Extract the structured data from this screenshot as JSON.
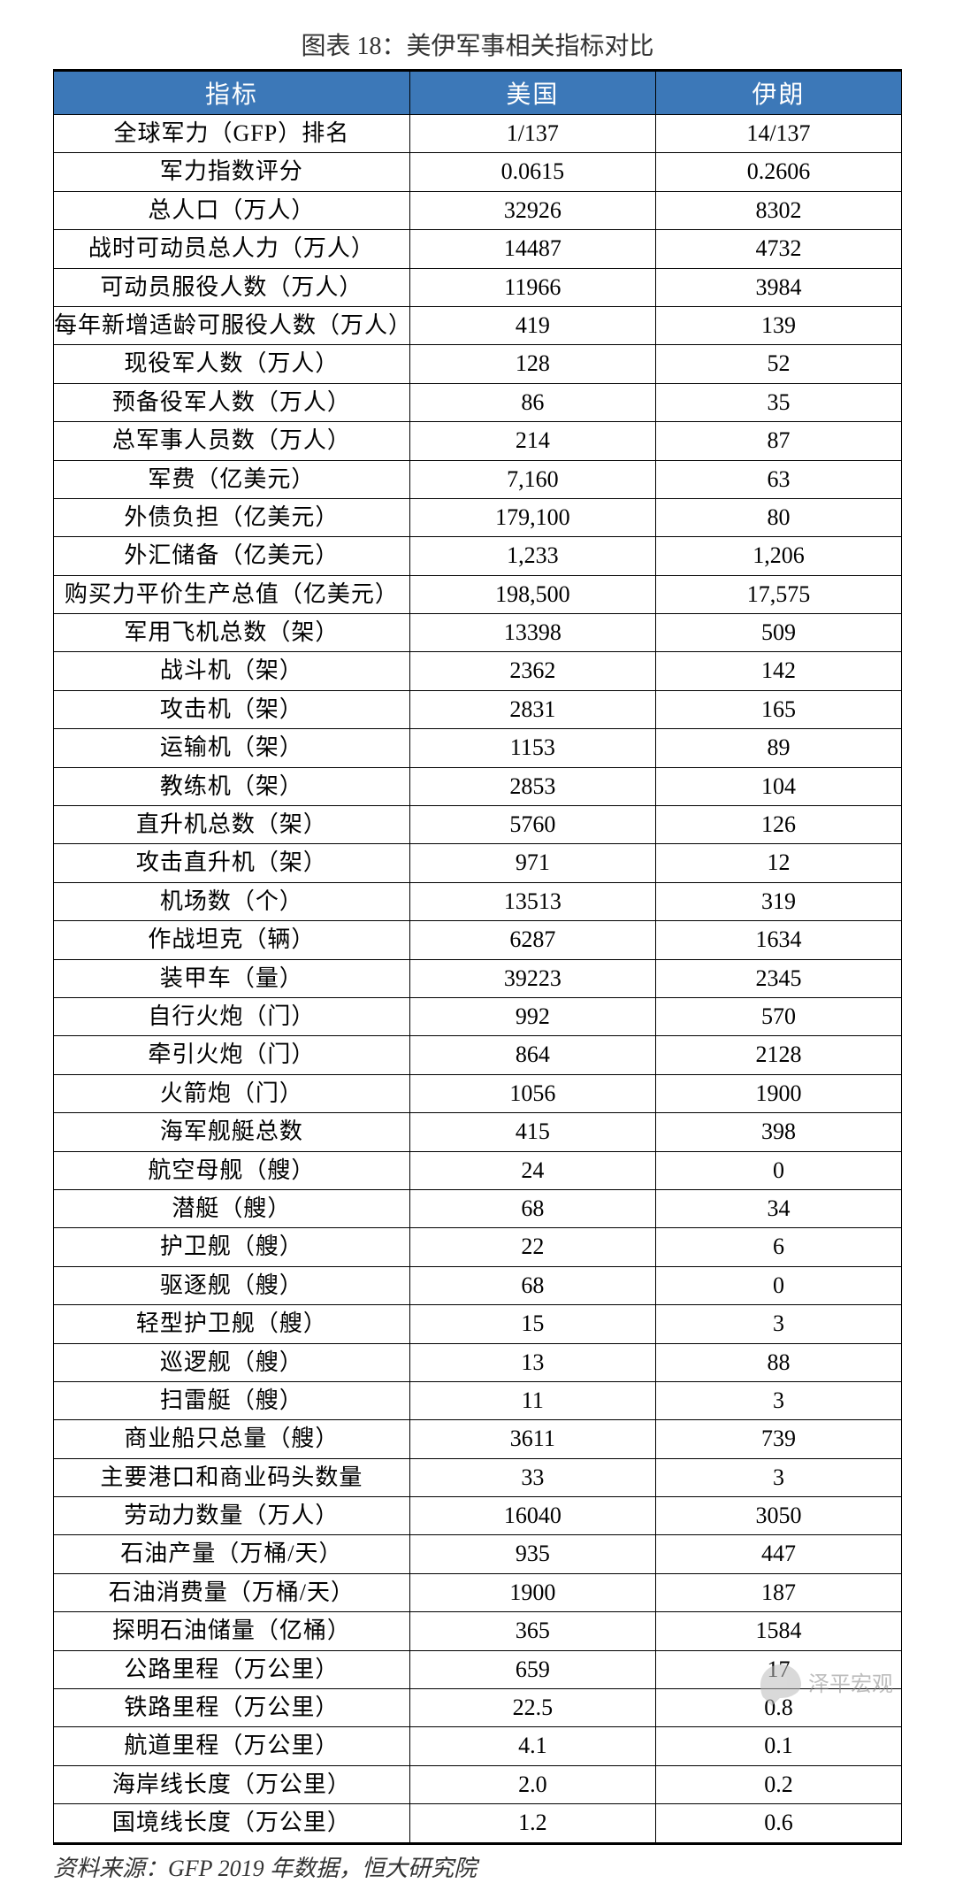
{
  "title": "图表 18：美伊军事相关指标对比",
  "source": "资料来源：GFP 2019 年数据，恒大研究院",
  "watermark": "泽平宏观",
  "table": {
    "header_bg": "#3c78b8",
    "header_color": "#ffffff",
    "border_color": "#000000",
    "columns": [
      "指标",
      "美国",
      "伊朗"
    ],
    "rows": [
      [
        "全球军力（GFP）排名",
        "1/137",
        "14/137"
      ],
      [
        "军力指数评分",
        "0.0615",
        "0.2606"
      ],
      [
        "总人口（万人）",
        "32926",
        "8302"
      ],
      [
        "战时可动员总人力（万人）",
        "14487",
        "4732"
      ],
      [
        "可动员服役人数（万人）",
        "11966",
        "3984"
      ],
      [
        "每年新增适龄可服役人数（万人）",
        "419",
        "139"
      ],
      [
        "现役军人数（万人）",
        "128",
        "52"
      ],
      [
        "预备役军人数（万人）",
        "86",
        "35"
      ],
      [
        "总军事人员数（万人）",
        "214",
        "87"
      ],
      [
        "军费（亿美元）",
        "7,160",
        "63"
      ],
      [
        "外债负担（亿美元）",
        "179,100",
        "80"
      ],
      [
        "外汇储备（亿美元）",
        "1,233",
        "1,206"
      ],
      [
        "购买力平价生产总值（亿美元）",
        "198,500",
        "17,575"
      ],
      [
        "军用飞机总数（架）",
        "13398",
        "509"
      ],
      [
        "战斗机（架）",
        "2362",
        "142"
      ],
      [
        "攻击机（架）",
        "2831",
        "165"
      ],
      [
        "运输机（架）",
        "1153",
        "89"
      ],
      [
        "教练机（架）",
        "2853",
        "104"
      ],
      [
        "直升机总数（架）",
        "5760",
        "126"
      ],
      [
        "攻击直升机（架）",
        "971",
        "12"
      ],
      [
        "机场数（个）",
        "13513",
        "319"
      ],
      [
        "作战坦克（辆）",
        "6287",
        "1634"
      ],
      [
        "装甲车（量）",
        "39223",
        "2345"
      ],
      [
        "自行火炮（门）",
        "992",
        "570"
      ],
      [
        "牵引火炮（门）",
        "864",
        "2128"
      ],
      [
        "火箭炮（门）",
        "1056",
        "1900"
      ],
      [
        "海军舰艇总数",
        "415",
        "398"
      ],
      [
        "航空母舰（艘）",
        "24",
        "0"
      ],
      [
        "潜艇（艘）",
        "68",
        "34"
      ],
      [
        "护卫舰（艘）",
        "22",
        "6"
      ],
      [
        "驱逐舰（艘）",
        "68",
        "0"
      ],
      [
        "轻型护卫舰（艘）",
        "15",
        "3"
      ],
      [
        "巡逻舰（艘）",
        "13",
        "88"
      ],
      [
        "扫雷艇（艘）",
        "11",
        "3"
      ],
      [
        "商业船只总量（艘）",
        "3611",
        "739"
      ],
      [
        "主要港口和商业码头数量",
        "33",
        "3"
      ],
      [
        "劳动力数量（万人）",
        "16040",
        "3050"
      ],
      [
        "石油产量（万桶/天）",
        "935",
        "447"
      ],
      [
        "石油消费量（万桶/天）",
        "1900",
        "187"
      ],
      [
        "探明石油储量（亿桶）",
        "365",
        "1584"
      ],
      [
        "公路里程（万公里）",
        "659",
        "17"
      ],
      [
        "铁路里程（万公里）",
        "22.5",
        "0.8"
      ],
      [
        "航道里程（万公里）",
        "4.1",
        "0.1"
      ],
      [
        "海岸线长度（万公里）",
        "2.0",
        "0.2"
      ],
      [
        "国境线长度（万公里）",
        "1.2",
        "0.6"
      ]
    ]
  }
}
